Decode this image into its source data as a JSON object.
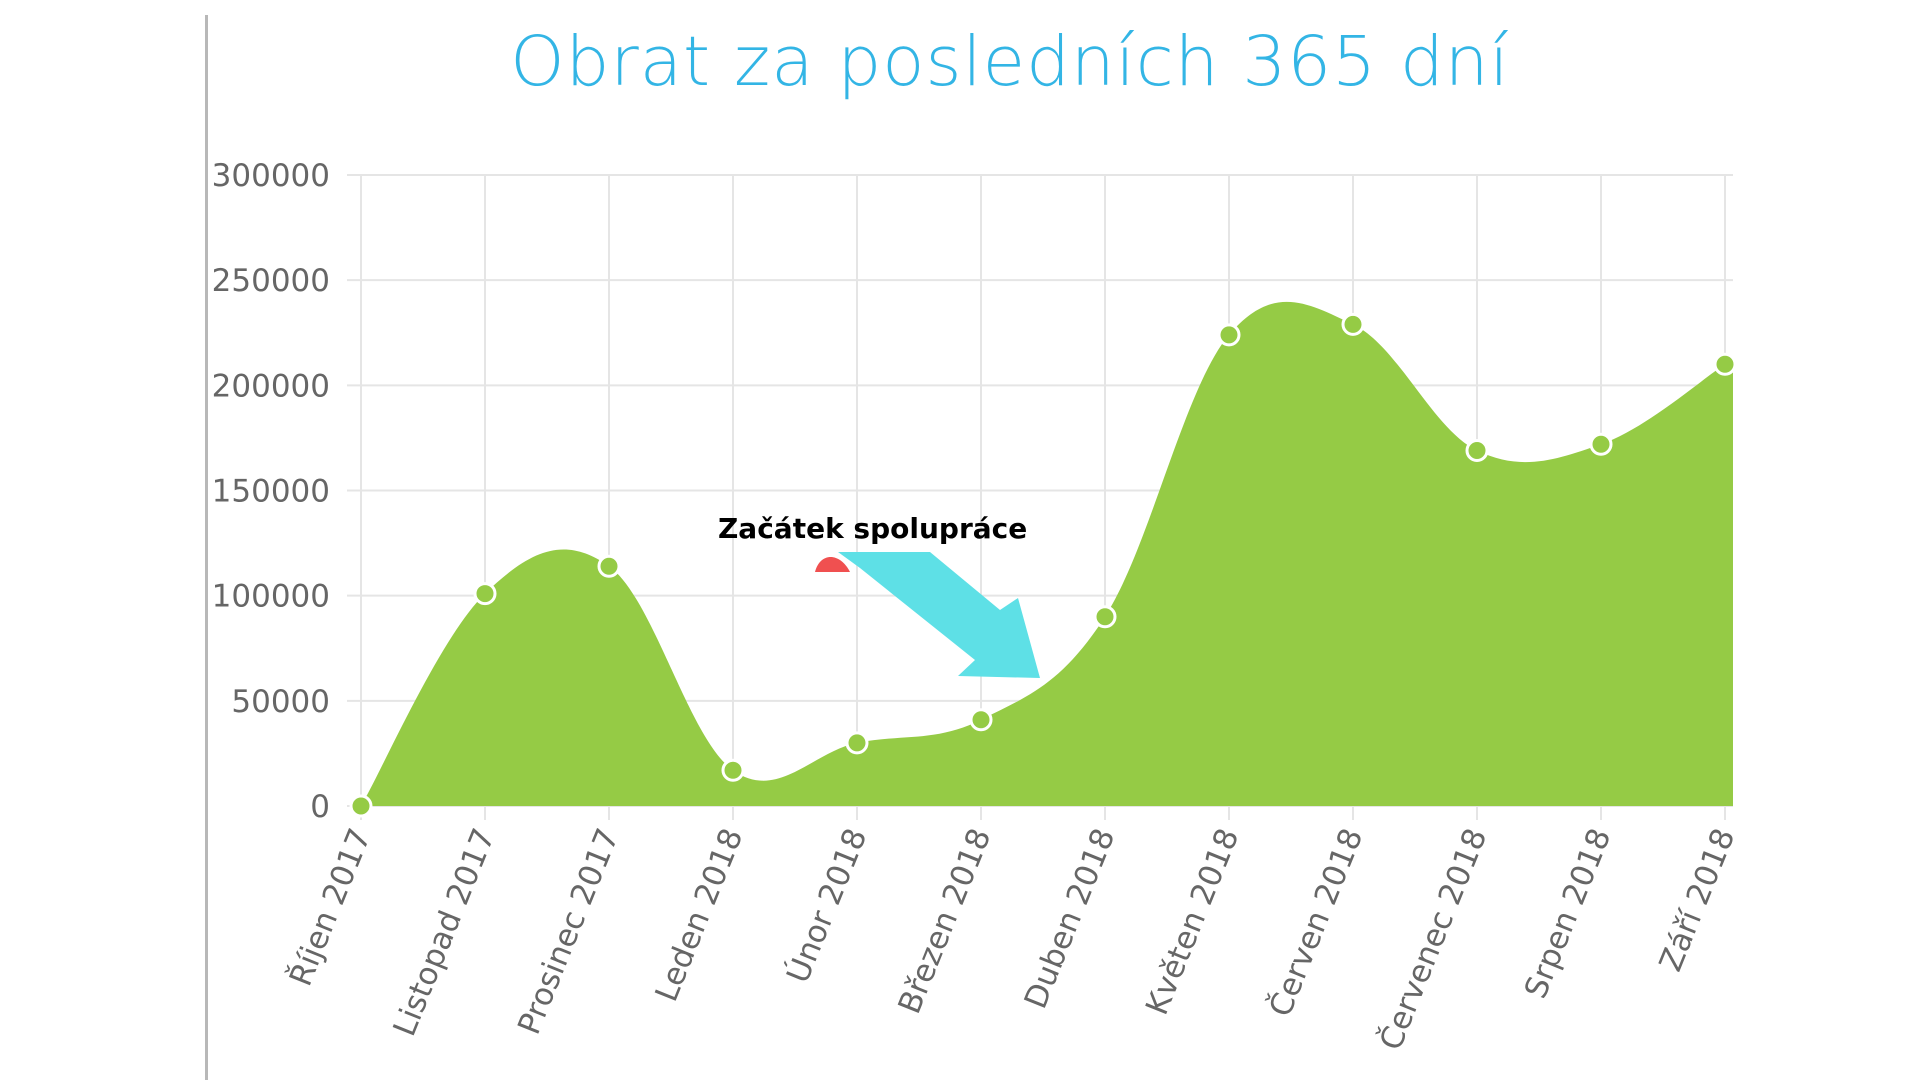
{
  "chart_data": {
    "type": "area",
    "title": "Obrat za posledních 365 dní",
    "xlabel": "",
    "ylabel": "",
    "categories": [
      "Říjen 2017",
      "Listopad 2017",
      "Prosinec 2017",
      "Leden 2018",
      "Únor 2018",
      "Březen 2018",
      "Duben 2018",
      "Květen 2018",
      "Červen 2018",
      "Červenec 2018",
      "Srpen 2018",
      "Září 2018"
    ],
    "values": [
      0,
      101000,
      114000,
      17000,
      30000,
      41000,
      90000,
      224000,
      229000,
      169000,
      172000,
      210000
    ],
    "ylim": [
      0,
      300000
    ],
    "yticks": [
      "300000",
      "250000",
      "200000",
      "150000",
      "100000",
      "50000",
      "0"
    ],
    "grid": true,
    "legend": "none",
    "annotation": {
      "text": "Začátek spolupráce",
      "points_to": "Březen 2018 – Duben 2018"
    }
  },
  "colors": {
    "title": "#33b5e5",
    "area_fill": "#95cb45",
    "point_fill": "#95cb45",
    "point_stroke": "#ffffff",
    "grid": "#e5e5e5",
    "tick_text": "#666666",
    "axis_rule": "#b8b8b8",
    "arrow_body": "#5ee0e6",
    "arrow_tail": "#f05050",
    "annotation_text": "#000000"
  }
}
